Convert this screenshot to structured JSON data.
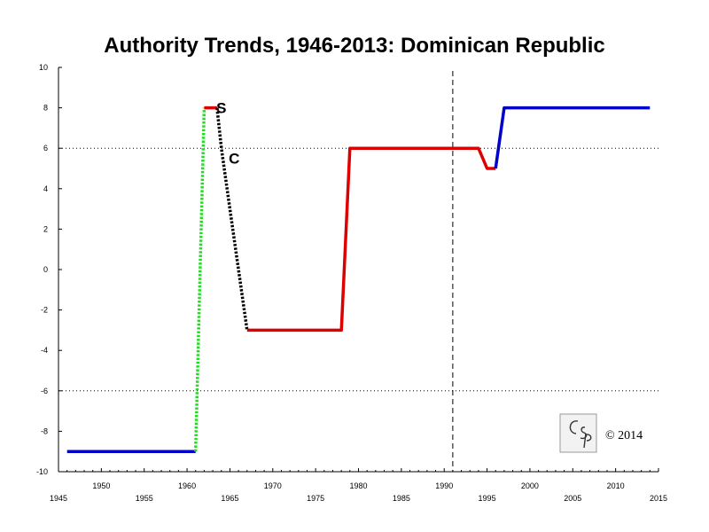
{
  "chart_data": {
    "type": "line",
    "title": "Authority Trends, 1946-2013: Dominican Republic",
    "xlim": [
      1945,
      2015
    ],
    "ylim": [
      -10,
      10
    ],
    "x_ticks": [
      1945,
      1950,
      1955,
      1960,
      1965,
      1970,
      1975,
      1980,
      1985,
      1990,
      1995,
      2000,
      2005,
      2010,
      2015
    ],
    "x_tick_labels": [
      "1945",
      "1950",
      "1955",
      "1960",
      "1965",
      "1970",
      "1975",
      "1980",
      "1985",
      "1990",
      "1995",
      "2000",
      "2005",
      "2010",
      "2015"
    ],
    "y_ticks": [
      -10,
      -8,
      -6,
      -4,
      -2,
      0,
      2,
      4,
      6,
      8,
      10
    ],
    "y_tick_labels": [
      "-10",
      "-8",
      "-6",
      "-4",
      "-2",
      "0",
      "2",
      "4",
      "6",
      "8",
      "10"
    ],
    "reference_lines": {
      "horizontal_dotted": [
        6,
        -6
      ],
      "vertical_dashed": [
        1991
      ]
    },
    "grid": false,
    "series": [
      {
        "color": "#0000cc",
        "style": "solid",
        "x": [
          1946,
          1961
        ],
        "y": [
          -9,
          -9
        ]
      },
      {
        "color": "#22dd22",
        "style": "dotted",
        "x": [
          1961,
          1962
        ],
        "y": [
          -9,
          8
        ]
      },
      {
        "color": "#dd0000",
        "style": "solid",
        "x": [
          1962,
          1963.5
        ],
        "y": [
          8,
          8
        ]
      },
      {
        "color": "#000000",
        "style": "dotted",
        "x": [
          1963.5,
          1964,
          1965,
          1966,
          1967
        ],
        "y": [
          8,
          6,
          3,
          0,
          -3
        ]
      },
      {
        "color": "#dd0000",
        "style": "solid",
        "x": [
          1967,
          1978,
          1979,
          1994,
          1995,
          1996
        ],
        "y": [
          -3,
          -3,
          6,
          6,
          5,
          5
        ]
      },
      {
        "color": "#0000cc",
        "style": "solid",
        "x": [
          1996,
          1997,
          2014
        ],
        "y": [
          5,
          8,
          8
        ]
      }
    ],
    "annotations": [
      {
        "text": "S",
        "x": 1964,
        "y": 8
      },
      {
        "text": "C",
        "x": 1965.5,
        "y": 5.5
      }
    ]
  },
  "badge": {
    "logo_text": "CSP",
    "copyright": "© 2014"
  }
}
